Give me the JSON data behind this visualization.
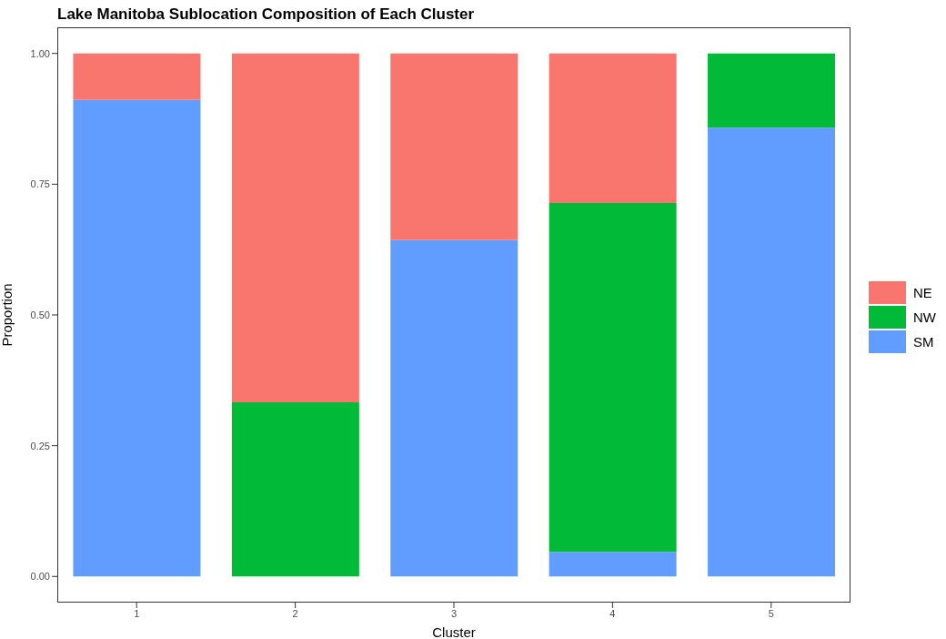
{
  "chart_data": {
    "type": "bar",
    "title": "Lake Manitoba Sublocation Composition of Each Cluster",
    "xlabel": "Cluster",
    "ylabel": "Proportion",
    "categories": [
      "1",
      "2",
      "3",
      "4",
      "5"
    ],
    "stacked": true,
    "legend": "right",
    "grid": false,
    "ylim": [
      -0.05,
      1.05
    ],
    "yticks": [
      {
        "value": 0,
        "label": "0.00"
      },
      {
        "value": 0.25,
        "label": "0.25"
      },
      {
        "value": 0.5,
        "label": "0.50"
      },
      {
        "value": 0.75,
        "label": "0.75"
      },
      {
        "value": 1,
        "label": "1.00"
      }
    ],
    "series": [
      {
        "name": "SM",
        "color": "#619cff",
        "values": [
          0.911,
          0,
          0.643,
          0.047,
          0.858
        ]
      },
      {
        "name": "NW",
        "color": "#00ba38",
        "values": [
          0,
          0.333,
          0,
          0.667,
          0.142
        ]
      },
      {
        "name": "NE",
        "color": "#f8766d",
        "values": [
          0.089,
          0.667,
          0.357,
          0.286,
          0
        ]
      }
    ]
  }
}
